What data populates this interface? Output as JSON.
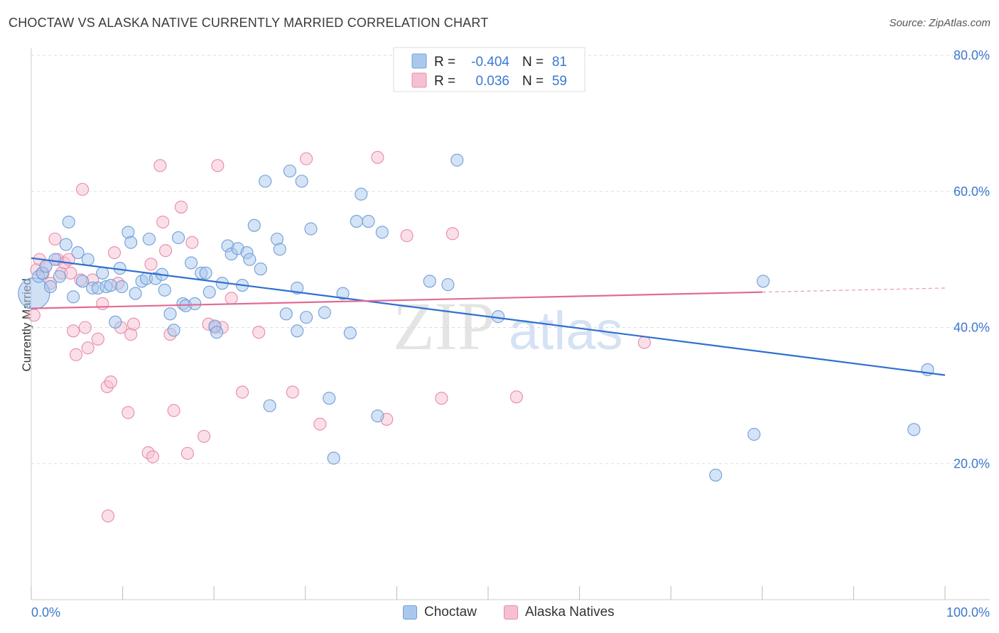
{
  "title": "CHOCTAW VS ALASKA NATIVE CURRENTLY MARRIED CORRELATION CHART",
  "source": "Source: ZipAtlas.com",
  "watermark": {
    "part1": "ZIP",
    "part2": "atlas"
  },
  "legend_top": {
    "rows": [
      {
        "r_label": "R =",
        "r_value": "-0.404",
        "n_label": "N =",
        "n_value": "81"
      },
      {
        "r_label": "R =",
        "r_value": "0.036",
        "n_label": "N =",
        "n_value": "59"
      }
    ]
  },
  "legend_bottom": [
    {
      "label": "Choctaw"
    },
    {
      "label": "Alaska Natives"
    }
  ],
  "colors": {
    "choctaw_fill": "#aac8ee",
    "choctaw_stroke": "#6f9fd8",
    "choctaw_line": "#2f6fd0",
    "alaska_fill": "#f6c0d2",
    "alaska_stroke": "#e88aab",
    "alaska_line": "#e06b95",
    "tick_text": "#3b78d0",
    "grid": "#dddddd"
  },
  "chart_data": {
    "type": "scatter",
    "title": "CHOCTAW VS ALASKA NATIVE CURRENTLY MARRIED CORRELATION CHART",
    "xlabel": "",
    "ylabel": "Currently Married",
    "xlim": [
      0,
      100
    ],
    "ylim": [
      0,
      80
    ],
    "x_tick_labels": [
      "0.0%",
      "100.0%"
    ],
    "y_ticks": [
      20,
      40,
      60,
      80
    ],
    "y_tick_labels": [
      "20.0%",
      "40.0%",
      "60.0%",
      "80.0%"
    ],
    "grid": true,
    "legend_position": "top-center",
    "series": [
      {
        "name": "Choctaw",
        "r": -0.404,
        "n": 81,
        "trend": {
          "x": [
            0,
            100
          ],
          "y": [
            50.2,
            33.0
          ]
        },
        "points": [
          [
            0.3,
            45.0
          ],
          [
            0.8,
            47.5
          ],
          [
            1.2,
            48.0
          ],
          [
            1.6,
            49.0
          ],
          [
            2.1,
            46.0
          ],
          [
            2.6,
            50.0
          ],
          [
            3.1,
            47.5
          ],
          [
            3.8,
            52.2
          ],
          [
            4.1,
            55.5
          ],
          [
            4.6,
            44.5
          ],
          [
            5.1,
            51.0
          ],
          [
            5.6,
            46.8
          ],
          [
            6.2,
            50.0
          ],
          [
            6.7,
            45.8
          ],
          [
            7.3,
            45.8
          ],
          [
            7.8,
            48.0
          ],
          [
            8.2,
            46.0
          ],
          [
            8.7,
            46.2
          ],
          [
            9.2,
            40.8
          ],
          [
            9.7,
            48.7
          ],
          [
            9.9,
            46.0
          ],
          [
            10.6,
            54.0
          ],
          [
            10.9,
            52.5
          ],
          [
            11.4,
            45.0
          ],
          [
            12.1,
            46.8
          ],
          [
            12.6,
            47.2
          ],
          [
            12.9,
            53.0
          ],
          [
            13.6,
            47.2
          ],
          [
            14.3,
            47.8
          ],
          [
            14.6,
            45.5
          ],
          [
            15.2,
            42.0
          ],
          [
            15.6,
            39.6
          ],
          [
            16.1,
            53.2
          ],
          [
            16.6,
            43.5
          ],
          [
            16.9,
            43.2
          ],
          [
            17.5,
            49.5
          ],
          [
            17.9,
            43.5
          ],
          [
            18.6,
            48.0
          ],
          [
            19.1,
            48.0
          ],
          [
            19.5,
            45.2
          ],
          [
            20.1,
            40.2
          ],
          [
            20.3,
            39.3
          ],
          [
            20.9,
            46.5
          ],
          [
            21.5,
            52.0
          ],
          [
            21.9,
            50.8
          ],
          [
            22.6,
            51.6
          ],
          [
            23.1,
            46.2
          ],
          [
            23.6,
            51.0
          ],
          [
            23.9,
            50.0
          ],
          [
            24.4,
            55.0
          ],
          [
            25.1,
            48.6
          ],
          [
            25.6,
            61.5
          ],
          [
            26.1,
            28.5
          ],
          [
            26.9,
            53.0
          ],
          [
            27.2,
            51.5
          ],
          [
            27.9,
            42.0
          ],
          [
            28.3,
            63.0
          ],
          [
            29.1,
            45.8
          ],
          [
            29.1,
            39.5
          ],
          [
            29.6,
            61.5
          ],
          [
            30.1,
            41.5
          ],
          [
            30.6,
            54.5
          ],
          [
            32.1,
            42.2
          ],
          [
            32.6,
            29.6
          ],
          [
            33.1,
            20.8
          ],
          [
            34.1,
            45.0
          ],
          [
            34.9,
            39.2
          ],
          [
            35.6,
            55.6
          ],
          [
            36.1,
            59.6
          ],
          [
            36.9,
            55.6
          ],
          [
            37.9,
            27.0
          ],
          [
            38.4,
            54.0
          ],
          [
            43.6,
            46.8
          ],
          [
            45.6,
            46.3
          ],
          [
            46.6,
            64.6
          ],
          [
            51.1,
            41.6
          ],
          [
            74.9,
            18.3
          ],
          [
            79.1,
            24.3
          ],
          [
            80.1,
            46.8
          ],
          [
            96.6,
            25.0
          ],
          [
            98.1,
            33.8
          ]
        ]
      },
      {
        "name": "Alaska Natives",
        "r": 0.036,
        "n": 59,
        "trend": {
          "x": [
            0,
            80,
            100
          ],
          "y": [
            42.8,
            45.2,
            45.8
          ]
        },
        "points": [
          [
            0.3,
            41.8
          ],
          [
            0.6,
            48.5
          ],
          [
            0.9,
            50.0
          ],
          [
            1.3,
            48.0
          ],
          [
            1.6,
            49.0
          ],
          [
            2.1,
            46.5
          ],
          [
            2.6,
            53.0
          ],
          [
            2.9,
            50.0
          ],
          [
            3.3,
            48.0
          ],
          [
            3.6,
            49.5
          ],
          [
            4.1,
            50.0
          ],
          [
            4.3,
            48.0
          ],
          [
            4.6,
            39.5
          ],
          [
            4.9,
            36.0
          ],
          [
            5.4,
            47.0
          ],
          [
            5.6,
            60.3
          ],
          [
            5.9,
            40.0
          ],
          [
            6.2,
            37.0
          ],
          [
            6.7,
            47.0
          ],
          [
            7.3,
            38.3
          ],
          [
            7.8,
            43.5
          ],
          [
            8.3,
            31.3
          ],
          [
            8.4,
            12.3
          ],
          [
            8.7,
            32.0
          ],
          [
            9.1,
            51.0
          ],
          [
            9.5,
            46.5
          ],
          [
            9.8,
            40.0
          ],
          [
            10.6,
            27.5
          ],
          [
            10.9,
            39.0
          ],
          [
            11.2,
            40.5
          ],
          [
            12.8,
            21.6
          ],
          [
            13.1,
            49.3
          ],
          [
            13.3,
            21.0
          ],
          [
            14.1,
            63.8
          ],
          [
            14.4,
            55.5
          ],
          [
            14.7,
            51.3
          ],
          [
            15.2,
            39.0
          ],
          [
            15.6,
            27.8
          ],
          [
            16.4,
            57.7
          ],
          [
            17.1,
            21.5
          ],
          [
            17.6,
            52.5
          ],
          [
            18.9,
            24.0
          ],
          [
            19.4,
            40.5
          ],
          [
            20.1,
            40.0
          ],
          [
            20.9,
            40.0
          ],
          [
            20.4,
            63.8
          ],
          [
            21.9,
            44.3
          ],
          [
            23.1,
            30.5
          ],
          [
            24.9,
            39.3
          ],
          [
            28.6,
            30.5
          ],
          [
            30.1,
            64.8
          ],
          [
            31.6,
            25.8
          ],
          [
            37.9,
            65.0
          ],
          [
            38.9,
            26.5
          ],
          [
            41.1,
            53.5
          ],
          [
            44.9,
            29.6
          ],
          [
            46.1,
            53.8
          ],
          [
            53.1,
            29.8
          ],
          [
            67.1,
            37.8
          ]
        ]
      }
    ]
  }
}
